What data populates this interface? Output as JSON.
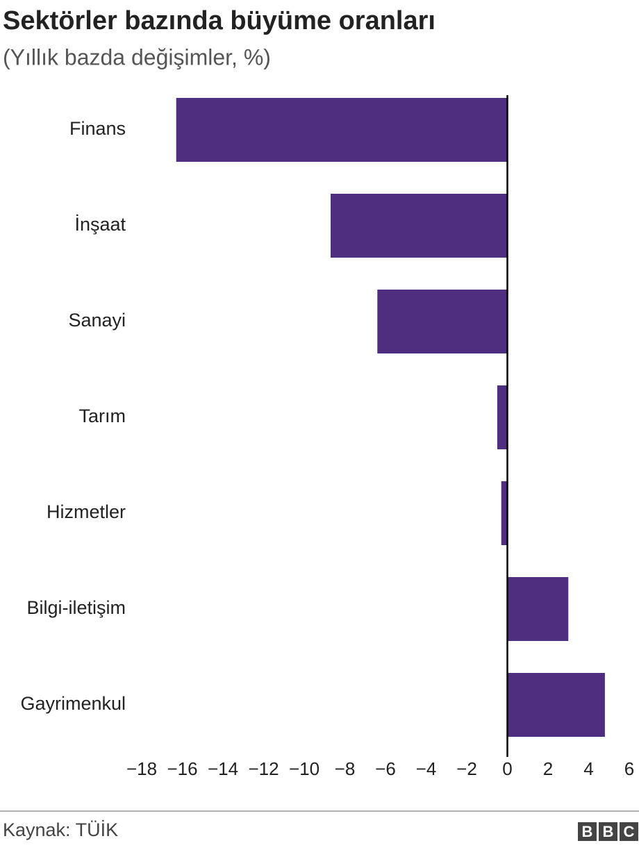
{
  "chart_data": {
    "type": "bar",
    "orientation": "horizontal",
    "title": "Sektörler bazında büyüme oranları",
    "subtitle": "(Yıllık bazda değişimler, %)",
    "categories": [
      "Finans",
      "İnşaat",
      "Sanayi",
      "Tarım",
      "Hizmetler",
      "Bilgi-iletişim",
      "Gayrimenkul"
    ],
    "values": [
      -16.3,
      -8.7,
      -6.4,
      -0.5,
      -0.3,
      3.0,
      4.8
    ],
    "color": "#4f2d7f",
    "xlim": [
      -18,
      6
    ],
    "xticks": [
      {
        "value": -18,
        "label": "−18"
      },
      {
        "value": -16,
        "label": "−16"
      },
      {
        "value": -14,
        "label": "−14"
      },
      {
        "value": -12,
        "label": "−12"
      },
      {
        "value": -10,
        "label": "−10"
      },
      {
        "value": -8,
        "label": "−8"
      },
      {
        "value": -6,
        "label": "−6"
      },
      {
        "value": -4,
        "label": "−4"
      },
      {
        "value": -2,
        "label": "−2"
      },
      0,
      2,
      4,
      6
    ],
    "grid": false,
    "source": "Kaynak: TÜİK",
    "logo": [
      "B",
      "B",
      "C"
    ]
  }
}
